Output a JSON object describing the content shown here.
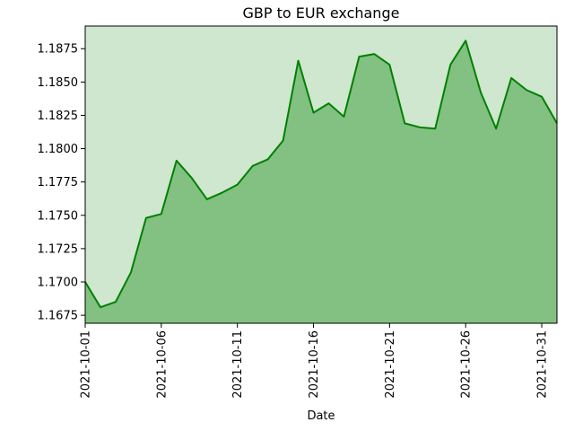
{
  "chart_data": {
    "type": "area",
    "title": "GBP to EUR exchange",
    "xlabel": "Date",
    "ylabel": "",
    "x": [
      "2021-10-01",
      "2021-10-02",
      "2021-10-03",
      "2021-10-04",
      "2021-10-05",
      "2021-10-06",
      "2021-10-07",
      "2021-10-08",
      "2021-10-09",
      "2021-10-10",
      "2021-10-11",
      "2021-10-12",
      "2021-10-13",
      "2021-10-14",
      "2021-10-15",
      "2021-10-16",
      "2021-10-17",
      "2021-10-18",
      "2021-10-19",
      "2021-10-20",
      "2021-10-21",
      "2021-10-22",
      "2021-10-23",
      "2021-10-24",
      "2021-10-25",
      "2021-10-26",
      "2021-10-27",
      "2021-10-28",
      "2021-10-29",
      "2021-10-30",
      "2021-10-31",
      "2021-11-01"
    ],
    "series": [
      {
        "values": [
          1.17,
          1.1681,
          1.1685,
          1.1707,
          1.1748,
          1.1751,
          1.1791,
          1.1778,
          1.1762,
          1.1767,
          1.1773,
          1.1787,
          1.1792,
          1.1806,
          1.1866,
          1.1827,
          1.1834,
          1.1824,
          1.1869,
          1.1871,
          1.1863,
          1.1819,
          1.1816,
          1.1815,
          1.1863,
          1.1881,
          1.1842,
          1.1815,
          1.1853,
          1.1844,
          1.1839,
          1.1819
        ],
        "line_color": "#008000",
        "fill_color": "#82c182"
      }
    ],
    "xtick_labels": [
      "2021-10-01",
      "2021-10-06",
      "2021-10-11",
      "2021-10-16",
      "2021-10-21",
      "2021-10-26",
      "2021-10-31"
    ],
    "ytick_labels": [
      "1.1675",
      "1.1700",
      "1.1725",
      "1.1750",
      "1.1775",
      "1.1800",
      "1.1825",
      "1.1850",
      "1.1875"
    ],
    "xlim": [
      "2021-10-01",
      "2021-11-01"
    ],
    "ylim": [
      1.1669,
      1.1892
    ],
    "plot_background": "#cfe6cf",
    "grid": false,
    "legend": "none"
  }
}
